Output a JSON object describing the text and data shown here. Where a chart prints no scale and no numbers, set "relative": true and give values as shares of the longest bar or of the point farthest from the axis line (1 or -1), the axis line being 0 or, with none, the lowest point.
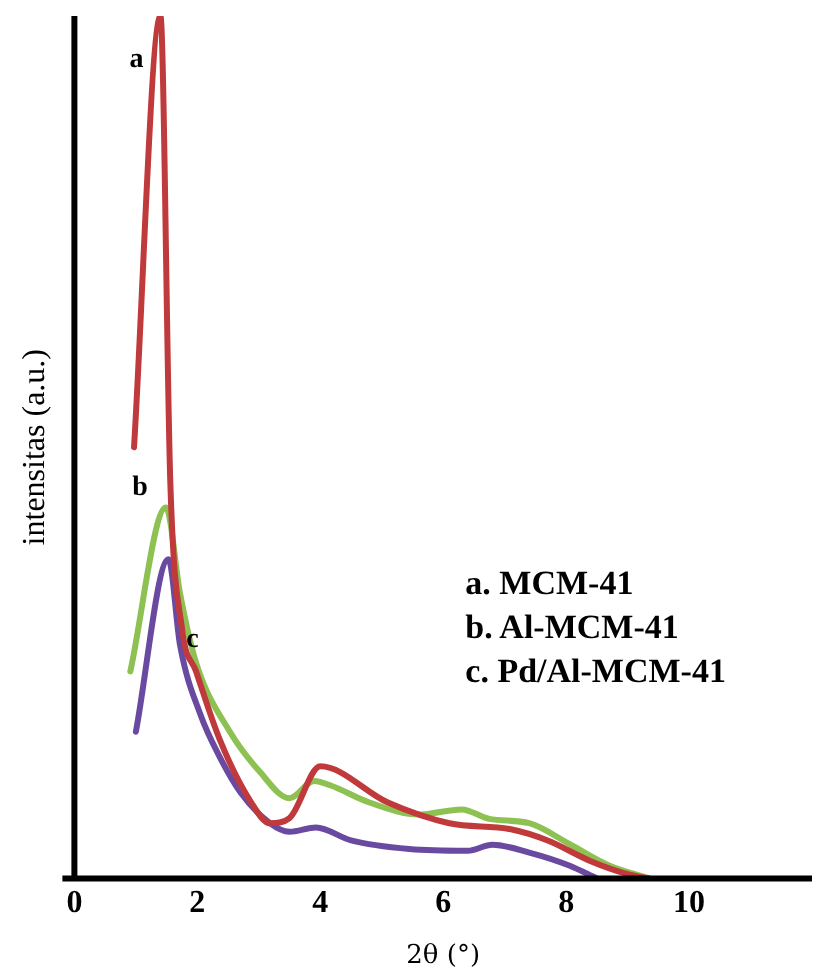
{
  "chart_data": {
    "type": "line",
    "xlabel": "2θ (°)",
    "ylabel": "intensitas (a.u.)",
    "relative": true,
    "xlim": [
      0,
      12
    ],
    "xticks": [
      0,
      2,
      4,
      6,
      8,
      10
    ],
    "grid": false,
    "legend": false,
    "marker": "none",
    "line_style": "solid",
    "series": [
      {
        "name": "a",
        "color": "#c0393b",
        "x": [
          0.97,
          1.4,
          1.56,
          1.75,
          1.98,
          2.37,
          2.86,
          3.18,
          3.5,
          4.0,
          5.1,
          6.1,
          7.1,
          7.7,
          8.4,
          9.0,
          9.35
        ],
        "values": [
          0.5,
          1.0,
          0.46,
          0.29,
          0.24,
          0.16,
          0.09,
          0.064,
          0.07,
          0.13,
          0.088,
          0.064,
          0.057,
          0.044,
          0.02,
          0.005,
          0
        ]
      },
      {
        "name": "b",
        "color": "#8dc152",
        "x": [
          0.91,
          1.49,
          1.72,
          1.98,
          2.53,
          3.0,
          3.5,
          3.9,
          4.16,
          4.8,
          5.6,
          6.3,
          6.75,
          7.4,
          8.05,
          8.7,
          9.35
        ],
        "values": [
          0.24,
          0.43,
          0.33,
          0.25,
          0.17,
          0.125,
          0.093,
          0.113,
          0.108,
          0.088,
          0.074,
          0.08,
          0.069,
          0.064,
          0.04,
          0.015,
          0
        ]
      },
      {
        "name": "c",
        "color": "#6a4aa0",
        "x": [
          1.0,
          1.53,
          1.72,
          2.05,
          2.37,
          2.7,
          3.18,
          3.5,
          3.93,
          4.5,
          5.45,
          6.4,
          6.8,
          7.4,
          8.05,
          8.5
        ],
        "values": [
          0.17,
          0.37,
          0.27,
          0.19,
          0.14,
          0.1,
          0.064,
          0.054,
          0.059,
          0.044,
          0.034,
          0.032,
          0.039,
          0.03,
          0.015,
          0
        ]
      }
    ],
    "annotations": [
      "a. MCM-41",
      "b. Al-MCM-41",
      "c. Pd/Al-MCM-41"
    ]
  }
}
